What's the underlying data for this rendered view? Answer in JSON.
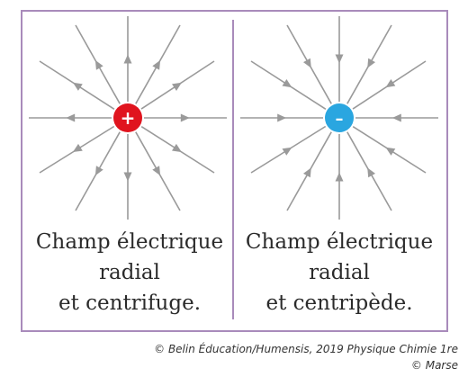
{
  "panels": [
    {
      "charge_sign": "+",
      "charge_color": "#e0141e",
      "field_direction": "outward",
      "caption_lines": [
        "Champ électrique",
        "radial",
        "et centrifuge."
      ]
    },
    {
      "charge_sign": "–",
      "charge_color": "#2aa6e0",
      "field_direction": "inward",
      "caption_lines": [
        "Champ électrique",
        "radial",
        "et centripède."
      ]
    }
  ],
  "credit": {
    "line1": "© Belin Éducation/Humensis, 2019 Physique Chimie 1re",
    "line2": "© Marse"
  },
  "colors": {
    "frame": "#a98bbb",
    "field_lines": "#9a9a9a"
  }
}
